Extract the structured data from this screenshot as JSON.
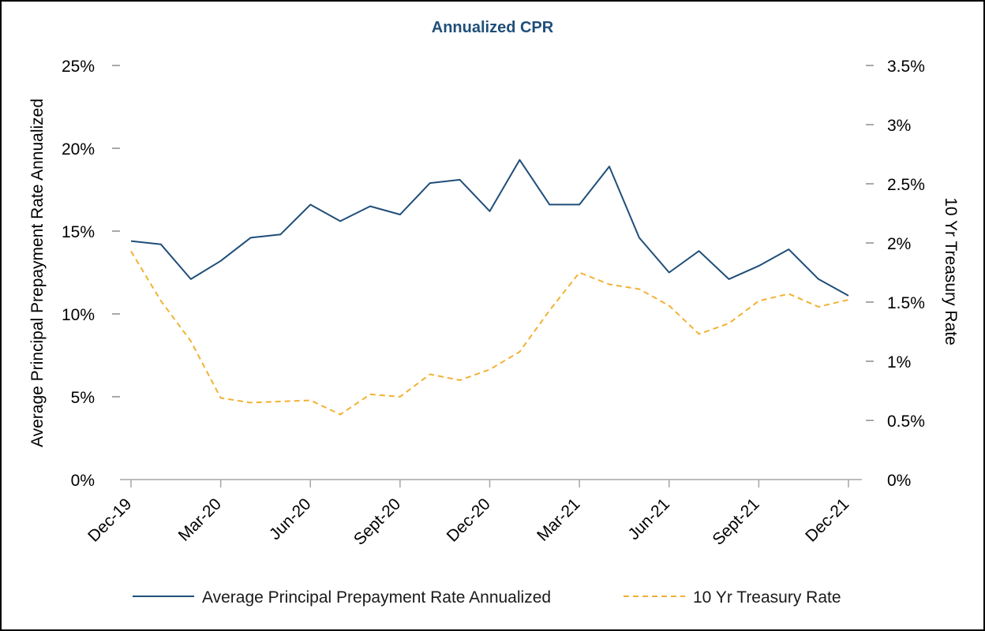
{
  "chart_data": {
    "type": "line",
    "title": "Annualized CPR",
    "xlabel": "",
    "ylabel_left": "Average Principal Prepayment Rate Annualized",
    "ylabel_right": "10 Yr Treasury Rate",
    "x": [
      "Dec-19",
      "Jan-20",
      "Feb-20",
      "Mar-20",
      "Apr-20",
      "May-20",
      "Jun-20",
      "Jul-20",
      "Aug-20",
      "Sept-20",
      "Oct-20",
      "Nov-20",
      "Dec-20",
      "Jan-21",
      "Feb-21",
      "Mar-21",
      "Apr-21",
      "May-21",
      "Jun-21",
      "Jul-21",
      "Aug-21",
      "Sept-21",
      "Oct-21",
      "Nov-21",
      "Dec-21"
    ],
    "x_tick_labels": [
      "Dec-19",
      "Mar-20",
      "Jun-20",
      "Sept-20",
      "Dec-20",
      "Mar-21",
      "Jun-21",
      "Sept-21",
      "Dec-21"
    ],
    "ylim_left": [
      0,
      25
    ],
    "ylim_right": [
      0,
      3.5
    ],
    "y_ticks_left": [
      "0%",
      "5%",
      "10%",
      "15%",
      "20%",
      "25%"
    ],
    "y_ticks_right": [
      "0%",
      "0.5%",
      "1%",
      "1.5%",
      "2%",
      "2.5%",
      "3%",
      "3.5%"
    ],
    "series": [
      {
        "name": "Average Principal Prepayment Rate Annualized",
        "axis": "left",
        "style": "solid",
        "color": "#1f4e79",
        "values": [
          14.4,
          14.2,
          12.1,
          13.2,
          14.6,
          14.8,
          16.6,
          15.6,
          16.5,
          16.0,
          17.9,
          18.1,
          16.2,
          19.3,
          16.6,
          16.6,
          18.9,
          14.6,
          12.5,
          13.8,
          12.1,
          12.9,
          13.9,
          12.1,
          11.1
        ]
      },
      {
        "name": "10 Yr Treasury Rate",
        "axis": "right",
        "style": "dashed",
        "color": "#f2b134",
        "values": [
          1.93,
          1.51,
          1.17,
          0.69,
          0.65,
          0.66,
          0.67,
          0.55,
          0.72,
          0.7,
          0.89,
          0.84,
          0.93,
          1.08,
          1.43,
          1.75,
          1.65,
          1.61,
          1.47,
          1.23,
          1.32,
          1.51,
          1.57,
          1.46,
          1.52
        ]
      }
    ],
    "legend": [
      "Average Principal Prepayment Rate Annualized",
      "10 Yr Treasury Rate"
    ],
    "legend_position": "bottom",
    "grid": false
  }
}
